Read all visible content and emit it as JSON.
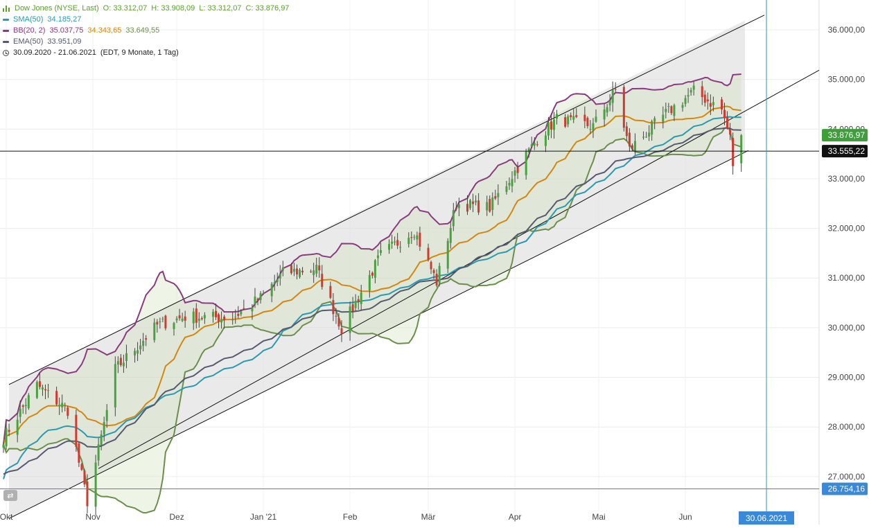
{
  "header": {
    "symbol": "Dow Jones (NYSE, Last)",
    "ohlc": {
      "o": "O: 33.312,07",
      "h": "H: 33.908,09",
      "l": "L: 33.312,07",
      "c": "C: 33.876,97"
    },
    "indicators": [
      {
        "label": "SMA(50)",
        "values": [
          "34.185,27"
        ],
        "color": "#2a9ab0"
      },
      {
        "label": "BB(20, 2)",
        "values": [
          "35.037,75",
          "34.343,65",
          "33.649,55"
        ],
        "color": "#8a3a7e",
        "value_colors": [
          "#8a3a7e",
          "#d4860f",
          "#6b8f4a"
        ]
      },
      {
        "label": "EMA(50)",
        "values": [
          "33.951,09"
        ],
        "color": "#555a6e"
      }
    ],
    "period": "30.09.2020 - 21.06.2021",
    "period_note": "(EDT, 9 Monate, 1 Tag)"
  },
  "colors": {
    "up": "#48a23f",
    "down": "#d03a30",
    "sma": "#2a9ab0",
    "ema": "#555a6e",
    "bb_upper": "#8a3a7e",
    "bb_mid": "#d4860f",
    "bb_lower": "#6b8f4a",
    "crosshair": "#3a88d8",
    "label_up": "#3e9e3a"
  },
  "labels": {
    "last_price": "33.876,97",
    "hline_price": "33.555,22",
    "crosshair_price": "26.754,16",
    "crosshair_date": "30.06.2021"
  },
  "chart_data": {
    "type": "candlestick",
    "title": "Dow Jones (NYSE, Last)",
    "y_ticks": [
      "27.000,00",
      "28.000,00",
      "29.000,00",
      "30.000,00",
      "31.000,00",
      "32.000,00",
      "33.000,00",
      "34.000,00",
      "35.000,00",
      "36.000,00"
    ],
    "y_tick_values": [
      27000,
      28000,
      29000,
      30000,
      31000,
      32000,
      33000,
      34000,
      35000,
      36000
    ],
    "ylim": [
      26300,
      36600
    ],
    "x_ticks": [
      "Okt",
      "Nov",
      "Dez",
      "Jan '21",
      "Feb",
      "Mär",
      "Apr",
      "Mai",
      "Jun"
    ],
    "x_tick_dates": [
      "2020-10-01",
      "2020-11-01",
      "2020-12-01",
      "2021-01-01",
      "2021-02-01",
      "2021-03-01",
      "2021-04-01",
      "2021-05-01",
      "2021-06-01"
    ],
    "date_range": [
      "2020-09-30",
      "2021-06-21"
    ],
    "last_close": 33876.97,
    "horizontal_line": 33555.22,
    "crosshair": {
      "date": "2021-06-30",
      "value": 26754.16
    },
    "channel": {
      "upper": [
        {
          "date": "2020-09-30",
          "value": 28800
        },
        {
          "date": "2021-06-30",
          "value": 36400
        }
      ],
      "lower": [
        {
          "date": "2020-09-30",
          "value": 26100
        },
        {
          "date": "2021-06-30",
          "value": 33750
        }
      ],
      "lower2": [
        {
          "date": "2020-11-01",
          "value": 27100
        },
        {
          "date": "2021-06-30",
          "value": 34600
        }
      ]
    },
    "anchor_sessions": [
      {
        "date": "2020-09-30",
        "close": 27780
      },
      {
        "date": "2020-10-12",
        "close": 28840
      },
      {
        "date": "2020-10-23",
        "close": 28340
      },
      {
        "date": "2020-10-30",
        "close": 26500
      },
      {
        "date": "2020-11-06",
        "close": 28320
      },
      {
        "date": "2020-11-09",
        "close": 29160
      },
      {
        "date": "2020-11-24",
        "close": 30050
      },
      {
        "date": "2020-12-04",
        "close": 30220
      },
      {
        "date": "2020-12-21",
        "close": 30200
      },
      {
        "date": "2020-12-31",
        "close": 30600
      },
      {
        "date": "2021-01-08",
        "close": 31100
      },
      {
        "date": "2021-01-20",
        "close": 31190
      },
      {
        "date": "2021-01-29",
        "close": 29980
      },
      {
        "date": "2021-02-12",
        "close": 31460
      },
      {
        "date": "2021-02-24",
        "close": 31960
      },
      {
        "date": "2021-03-04",
        "close": 30920
      },
      {
        "date": "2021-03-11",
        "close": 32490
      },
      {
        "date": "2021-03-23",
        "close": 32420
      },
      {
        "date": "2021-04-09",
        "close": 33800
      },
      {
        "date": "2021-04-16",
        "close": 34200
      },
      {
        "date": "2021-04-29",
        "close": 34060
      },
      {
        "date": "2021-05-07",
        "close": 34780
      },
      {
        "date": "2021-05-12",
        "close": 33590
      },
      {
        "date": "2021-05-25",
        "close": 34310
      },
      {
        "date": "2021-06-04",
        "close": 34760
      },
      {
        "date": "2021-06-14",
        "close": 34390
      },
      {
        "date": "2021-06-17",
        "close": 33820
      },
      {
        "date": "2021-06-18",
        "close": 33290
      },
      {
        "date": "2021-06-21",
        "close": 33877
      }
    ]
  }
}
